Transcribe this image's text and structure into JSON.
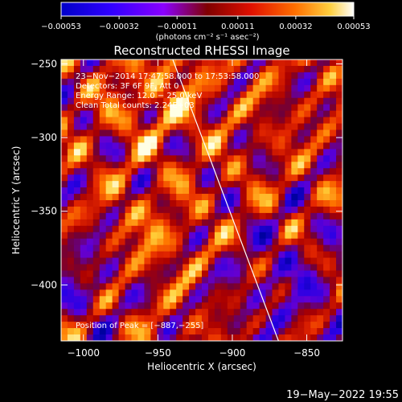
{
  "chart_data": {
    "type": "heatmap",
    "title": "Reconstructed RHESSI Image",
    "xlabel": "Heliocentric X (arcsec)",
    "ylabel": "Heliocentric Y (arcsec)",
    "xlim": [
      -1015,
      -826
    ],
    "ylim": [
      -438,
      -247
    ],
    "x_ticks": [
      {
        "value": -1000,
        "label": "−1000"
      },
      {
        "value": -950,
        "label": "−950"
      },
      {
        "value": -900,
        "label": "−900"
      },
      {
        "value": -850,
        "label": "−850"
      }
    ],
    "y_ticks": [
      {
        "value": -250,
        "label": "−250"
      },
      {
        "value": -300,
        "label": "−300"
      },
      {
        "value": -350,
        "label": "−350"
      },
      {
        "value": -400,
        "label": "−400"
      }
    ],
    "colorbar": {
      "min": -0.00053,
      "max": 0.00053,
      "ticks": [
        {
          "value": -0.00053,
          "label": "−0.00053"
        },
        {
          "value": -0.00032,
          "label": "−0.00032"
        },
        {
          "value": -0.00011,
          "label": "−0.00011"
        },
        {
          "value": 0.00011,
          "label": "0.00011"
        },
        {
          "value": 0.00032,
          "label": "0.00032"
        },
        {
          "value": 0.00053,
          "label": "0.00053"
        }
      ],
      "unit_label": "(photons cm⁻² s⁻¹ asec⁻²)"
    },
    "peak": {
      "x": -887,
      "y": -255
    },
    "limb_line": [
      {
        "x": -940,
        "y": -247
      },
      {
        "x": -869,
        "y": -438
      }
    ],
    "annotations": [
      "23−Nov−2014 17:47:58.000 to 17:53:58.000",
      "Detectors: 3F 6F 9F, Att 0",
      "Energy Range: 12.0 − 25.0 keV",
      "Clean   Total counts: 2.24E+03"
    ],
    "peak_label": "Position of Peak = [−887,−255]",
    "timestamp": "19−May−2022 19:55"
  }
}
